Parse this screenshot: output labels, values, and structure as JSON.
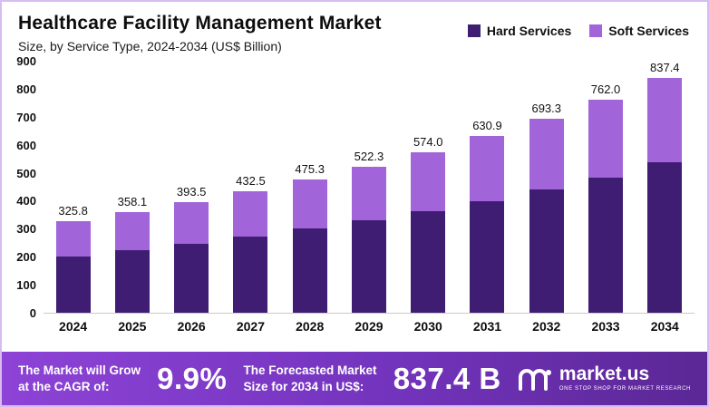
{
  "header": {
    "title": "Healthcare Facility Management Market",
    "subtitle": "Size, by Service Type, 2024-2034 (US$ Billion)"
  },
  "legend": [
    {
      "label": "Hard Services",
      "color": "#3f1d72"
    },
    {
      "label": "Soft Services",
      "color": "#a164d9"
    }
  ],
  "chart_data": {
    "type": "bar",
    "stacked": true,
    "title": "Healthcare Facility Management Market Size, by Service Type, 2024-2034 (US$ Billion)",
    "categories": [
      "2024",
      "2025",
      "2026",
      "2027",
      "2028",
      "2029",
      "2030",
      "2031",
      "2032",
      "2033",
      "2034"
    ],
    "series": [
      {
        "name": "Hard Services",
        "color": "#3f1d72",
        "values": [
          200.0,
          224.0,
          246.0,
          272.0,
          300.0,
          330.0,
          362.0,
          397.0,
          440.0,
          483.0,
          537.0
        ]
      },
      {
        "name": "Soft Services",
        "color": "#a164d9",
        "values": [
          125.8,
          134.1,
          147.5,
          160.5,
          175.3,
          192.3,
          212.0,
          233.9,
          253.3,
          279.0,
          300.4
        ]
      }
    ],
    "totals": [
      325.8,
      358.1,
      393.5,
      432.5,
      475.3,
      522.3,
      574.0,
      630.9,
      693.3,
      762.0,
      837.4
    ],
    "xlabel": "",
    "ylabel": "",
    "ylim": [
      0,
      900
    ],
    "yticks": [
      0,
      100,
      200,
      300,
      400,
      500,
      600,
      700,
      800,
      900
    ],
    "grid": false,
    "legend_position": "top-right"
  },
  "footer": {
    "cagr_label_line1": "The Market will Grow",
    "cagr_label_line2": "at the CAGR of:",
    "cagr_value": "9.9%",
    "forecast_label_line1": "The Forecasted Market",
    "forecast_label_line2": "Size for 2034 in US$:",
    "forecast_value": "837.4 B",
    "brand": "market.us",
    "brand_tagline": "ONE STOP SHOP FOR MARKET RESEARCH"
  }
}
